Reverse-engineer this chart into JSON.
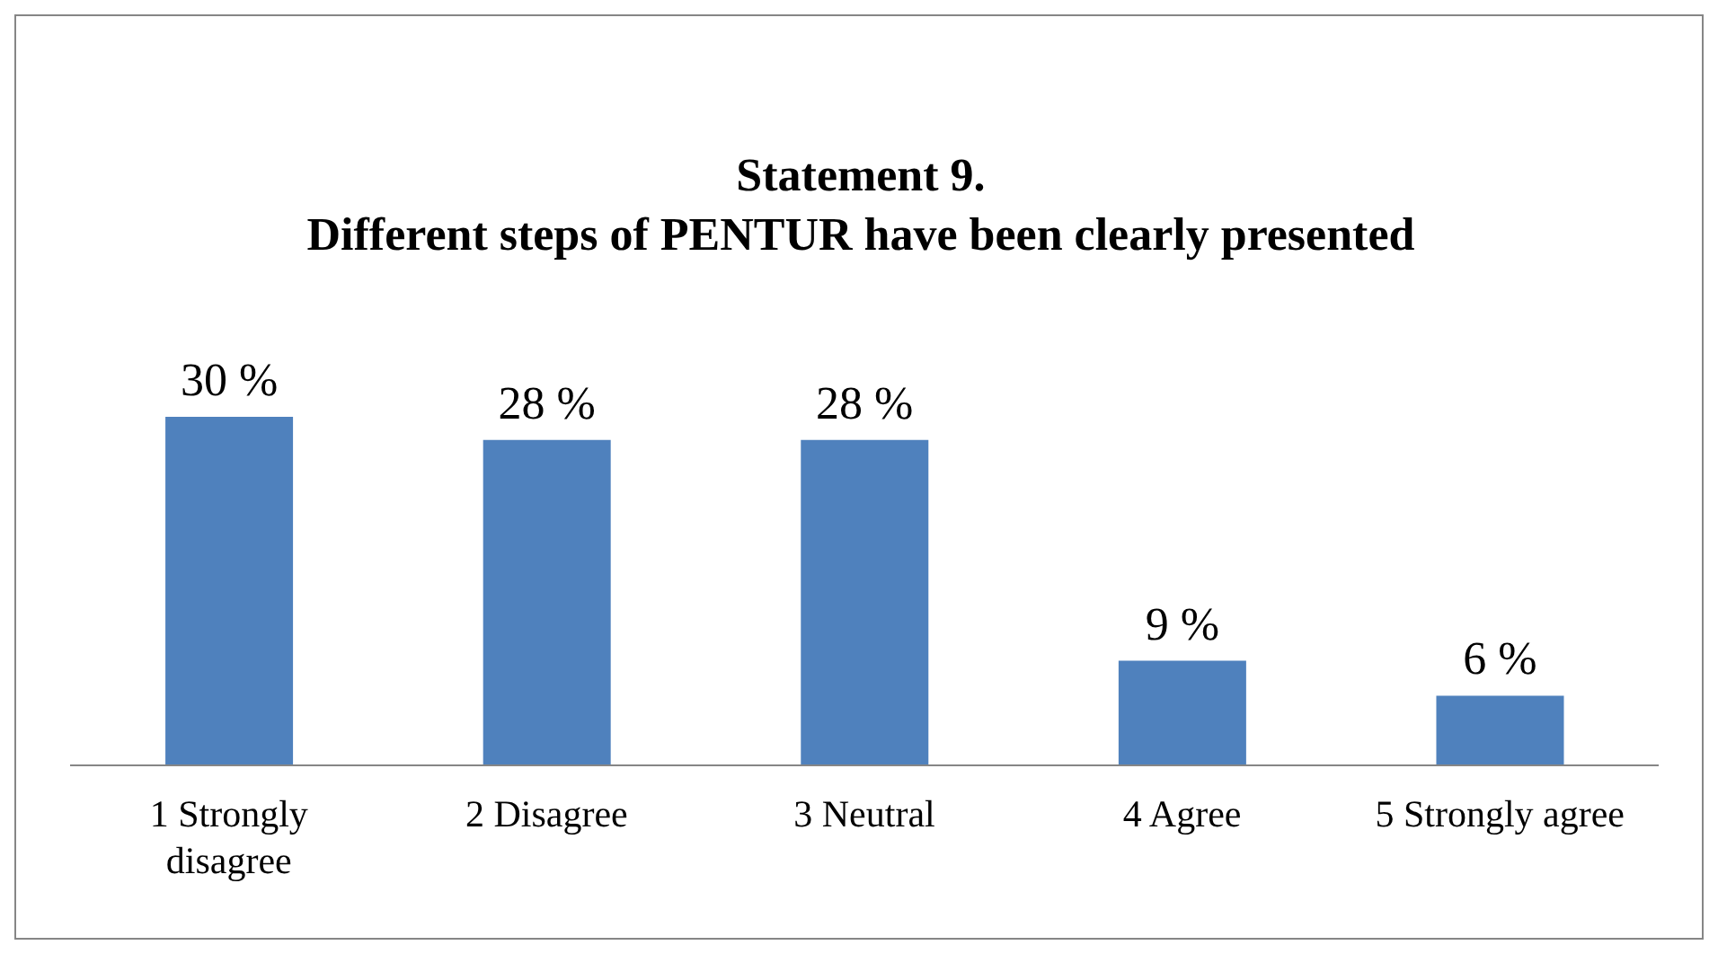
{
  "chart_data": {
    "type": "bar",
    "title": "Statement 9.\nDifferent steps of PENTUR have been clearly presented",
    "categories": [
      "1 Strongly disagree",
      "2 Disagree",
      "3 Neutral",
      "4 Agree",
      "5 Strongly agree"
    ],
    "values": [
      30,
      28,
      28,
      9,
      6
    ],
    "value_labels": [
      "30 %",
      "28 %",
      "28 %",
      "9 %",
      "6 %"
    ],
    "color": "#4f81bd",
    "grid": false,
    "legend": false
  }
}
